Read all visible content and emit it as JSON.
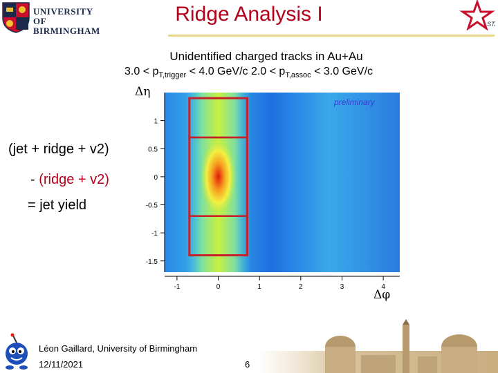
{
  "header": {
    "title": "Ridge Analysis I",
    "university_line1": "UNIVERSITY OF",
    "university_line2": "BIRMINGHAM",
    "star_logo_text": "STAR"
  },
  "subtitle": "Unidentified charged tracks in Au+Au",
  "cuts": {
    "trigger_prefix": "3.0 < p",
    "trigger_sub": "T,trigger",
    "trigger_suffix": " < 4.0 GeV/c   2.0 < p",
    "assoc_sub": "T,assoc",
    "assoc_suffix": " < 3.0 GeV/c"
  },
  "equation": {
    "line1": "(jet + ridge + v2)",
    "line2_dash": "- ",
    "line2_text": "(ridge + v2)",
    "line3": "= jet yield"
  },
  "chart_data": {
    "type": "heatmap",
    "xlabel": "Δφ",
    "ylabel": "Δη",
    "x_ticks": [
      "-1",
      "0",
      "1",
      "2",
      "3",
      "4"
    ],
    "y_ticks": [
      "1",
      "0.5",
      "0",
      "-0.5",
      "-1",
      "-1.5"
    ],
    "xlim": [
      -1.3,
      4.4
    ],
    "ylim": [
      -1.7,
      1.5
    ],
    "watermark": "preliminary",
    "regions": [
      {
        "name": "jet+ridge window",
        "x": [
          -0.7,
          0.7
        ],
        "y": [
          -1.4,
          1.4
        ]
      },
      {
        "name": "jet region",
        "x": [
          -0.7,
          0.7
        ],
        "y": [
          -0.7,
          0.7
        ]
      },
      {
        "name": "ridge region upper",
        "x": [
          -0.7,
          0.7
        ],
        "y": [
          0.7,
          1.4
        ]
      },
      {
        "name": "ridge region lower",
        "x": [
          -0.7,
          0.7
        ],
        "y": [
          -1.4,
          -0.7
        ]
      }
    ],
    "colors": {
      "low": "#1e6fe0",
      "mid": "#3cc0e8",
      "high": "#c8f040",
      "peak": "#e21a0c",
      "box": "#c8202a"
    }
  },
  "footer": {
    "author": "Léon Gaillard, University of Birmingham",
    "date": "12/11/2021",
    "page": "6"
  }
}
